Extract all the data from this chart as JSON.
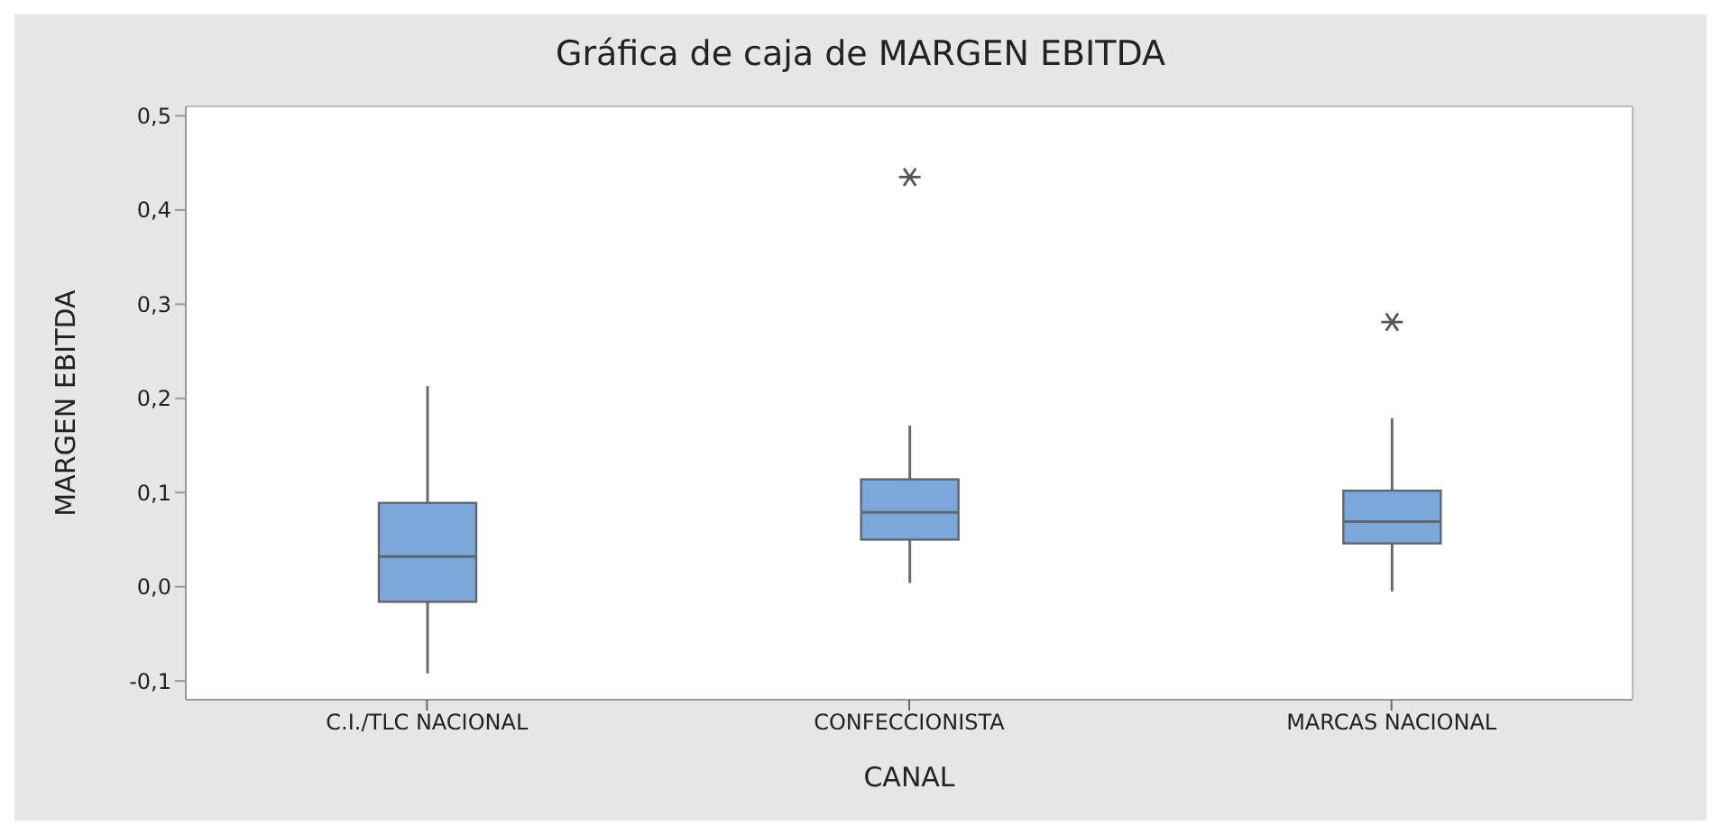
{
  "chart_data": {
    "type": "box",
    "title": "Gráfica de caja de MARGEN EBITDA",
    "xlabel": "CANAL",
    "ylabel": "MARGEN EBITDA",
    "categories": [
      "C.I./TLC NACIONAL",
      "CONFECCIONISTA",
      "MARCAS NACIONAL"
    ],
    "color": "#7ba7d9",
    "boxes": [
      {
        "low": -0.092,
        "q1": -0.016,
        "median": 0.032,
        "q3": 0.089,
        "high": 0.213
      },
      {
        "low": 0.004,
        "q1": 0.05,
        "median": 0.079,
        "q3": 0.114,
        "high": 0.171,
        "outliers": [
          0.435
        ]
      },
      {
        "low": -0.005,
        "q1": 0.046,
        "median": 0.069,
        "q3": 0.102,
        "high": 0.179,
        "outliers": [
          0.281
        ]
      }
    ],
    "ylim": [
      -0.12,
      0.51
    ],
    "yticks": [
      {
        "value": -0.1,
        "label": "-0,1"
      },
      {
        "value": 0,
        "label": "0,0"
      },
      {
        "value": 0.1,
        "label": "0,1"
      },
      {
        "value": 0.2,
        "label": "0,2"
      },
      {
        "value": 0.3,
        "label": "0,3"
      },
      {
        "value": 0.4,
        "label": "0,4"
      },
      {
        "value": 0.5,
        "label": "0,5"
      }
    ]
  }
}
